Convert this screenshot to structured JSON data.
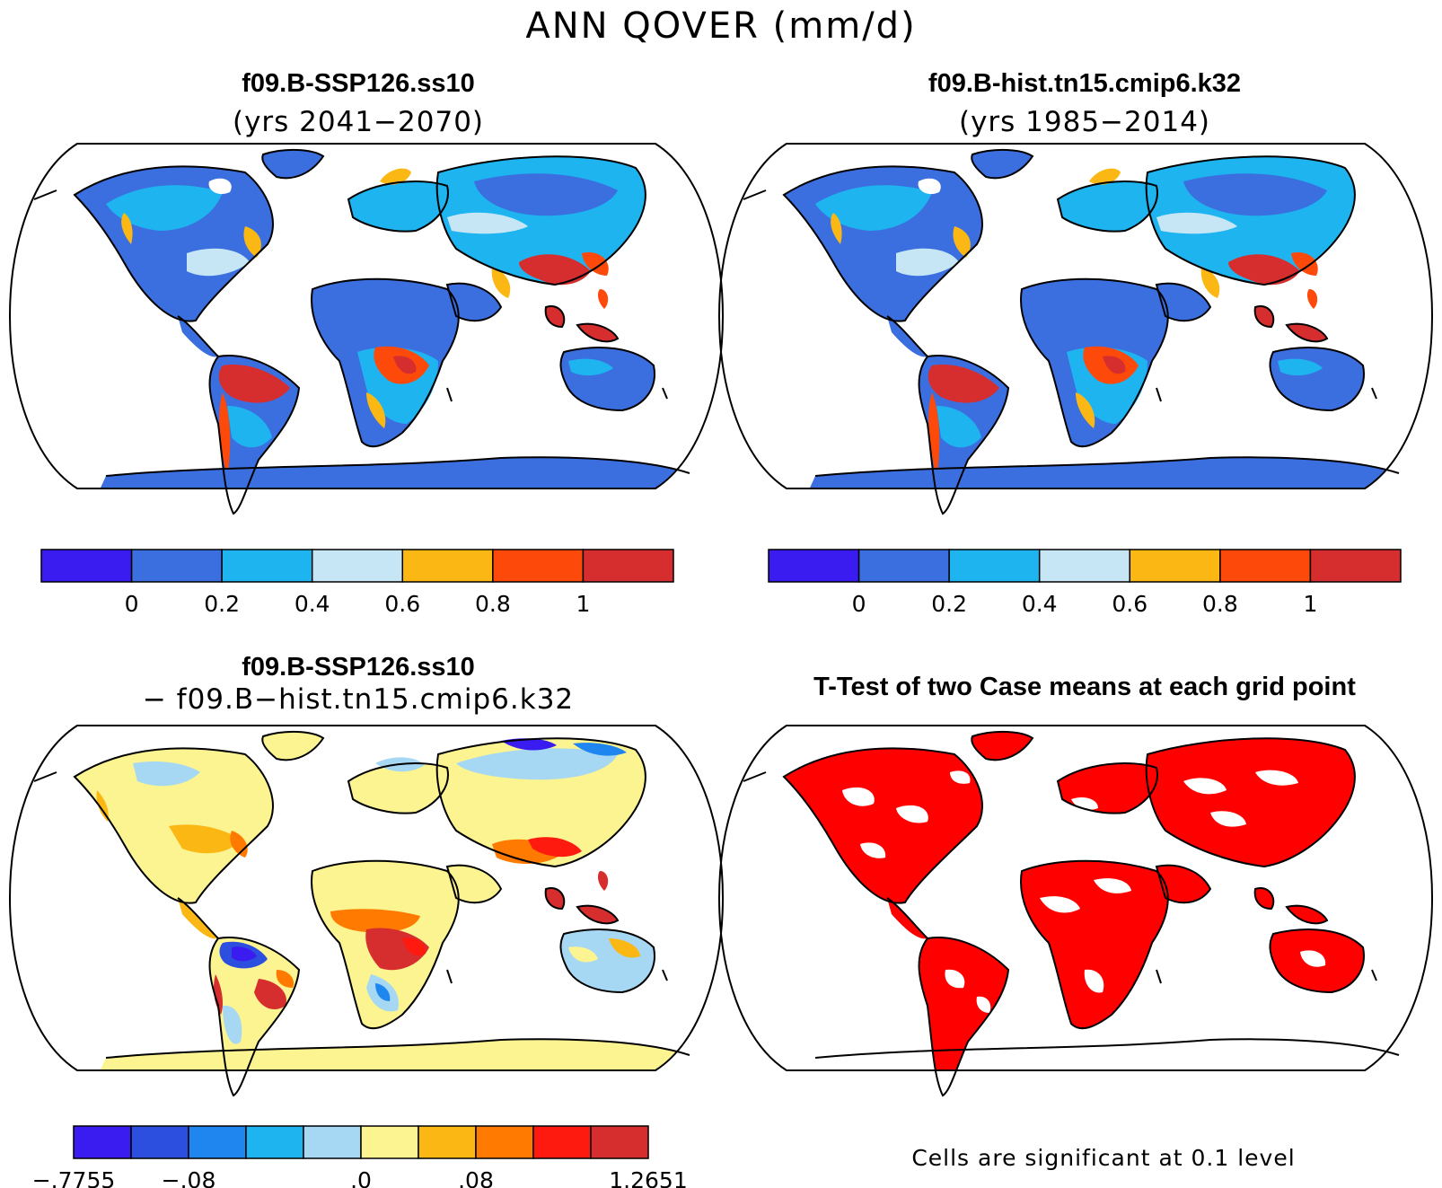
{
  "figure": {
    "title": "ANN QOVER (mm/d)"
  },
  "panels": {
    "top_left": {
      "title": "f09.B-SSP126.ss10",
      "subtitle": "(yrs 2041−2070)"
    },
    "top_right": {
      "title": "f09.B-hist.tn15.cmip6.k32",
      "subtitle": "(yrs 1985−2014)"
    },
    "bottom_left": {
      "title": "f09.B-SSP126.ss10",
      "subtitle": "− f09.B−hist.tn15.cmip6.k32"
    },
    "bottom_right": {
      "title": "T-Test of two Case means at each grid point",
      "note": "Cells are significant at 0.1 level"
    }
  },
  "colorbars": {
    "absolute": {
      "colors": [
        "#3a1cf0",
        "#3b6fe0",
        "#1db4f0",
        "#c6e6f6",
        "#fbb814",
        "#fd4a0a",
        "#d62e2e"
      ],
      "ticks": [
        "0",
        "0.2",
        "0.4",
        "0.6",
        "0.8",
        "1"
      ]
    },
    "difference": {
      "colors": [
        "#3a1cf0",
        "#2d4fe0",
        "#1f86f0",
        "#1db4f0",
        "#a6d8f4",
        "#fcf391",
        "#fbb814",
        "#ff7a00",
        "#ff1a10",
        "#d62e2e"
      ],
      "ticks": [
        "−.7755",
        "−.08",
        ".0",
        ".08",
        "1.2651"
      ]
    },
    "significance": {
      "color": "#ff0000"
    }
  },
  "chart_data": [
    {
      "type": "heatmap",
      "title": "f09.B-SSP126.ss10",
      "subtitle": "(yrs 2041−2070)",
      "projection": "Robinson",
      "color_levels": [
        0,
        0.2,
        0.4,
        0.6,
        0.8,
        1
      ],
      "units": "mm/d"
    },
    {
      "type": "heatmap",
      "title": "f09.B-hist.tn15.cmip6.k32",
      "subtitle": "(yrs 1985−2014)",
      "projection": "Robinson",
      "color_levels": [
        0,
        0.2,
        0.4,
        0.6,
        0.8,
        1
      ],
      "units": "mm/d"
    },
    {
      "type": "heatmap",
      "title": "f09.B-SSP126.ss10",
      "subtitle": "− f09.B−hist.tn15.cmip6.k32",
      "projection": "Robinson",
      "color_levels_labeled": [
        -0.7755,
        -0.08,
        0.0,
        0.08,
        1.2651
      ],
      "units": "mm/d"
    },
    {
      "type": "heatmap",
      "title": "T-Test of two Case means at each grid point",
      "projection": "Robinson",
      "significance_level": 0.1
    }
  ]
}
